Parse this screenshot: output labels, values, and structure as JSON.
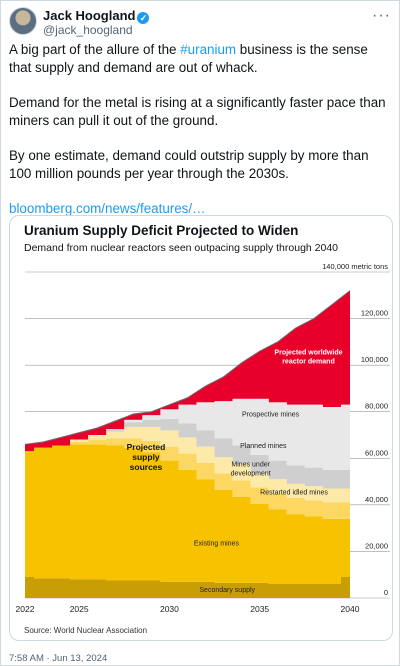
{
  "author": {
    "name": "Jack Hoogland",
    "handle": "@jack_hoogland",
    "verified_icon": "verified-badge-icon",
    "more_icon": "more-options-icon"
  },
  "tweet": {
    "p1_before": "A big part of the allure of the ",
    "p1_hashtag": "#uranium",
    "p1_after": " business is the sense that supply and demand are out of whack.",
    "p2": "Demand for the metal is rising at a significantly faster pace than miners can pull it out of the ground.",
    "p3": "By one estimate, demand could outstrip supply by more than 100 million pounds per year through the 2030s.",
    "link": "bloomberg.com/news/features/…",
    "timestamp": "7:58 AM · Jun 13, 2024"
  },
  "chart_data": {
    "type": "area",
    "title": "Uranium Supply Deficit Projected to Widen",
    "subtitle": "Demand from nuclear reactors seen outpacing supply through 2040",
    "y_unit": "140,000 metric tons",
    "ylim": [
      0,
      140000
    ],
    "y_ticks": [
      "0",
      "20,000",
      "40,000",
      "60,000",
      "80,000",
      "100,000",
      "120,000"
    ],
    "x_ticks": [
      "2022",
      "2025",
      "2030",
      "2035",
      "2040"
    ],
    "x": [
      2022,
      2023,
      2024,
      2025,
      2026,
      2027,
      2028,
      2029,
      2030,
      2031,
      2032,
      2033,
      2034,
      2035,
      2036,
      2037,
      2038,
      2039,
      2040
    ],
    "series": [
      {
        "name": "Secondary supply",
        "color": "#c99e05",
        "values": [
          9000,
          8500,
          8500,
          8000,
          8000,
          7500,
          7500,
          7500,
          7000,
          7000,
          7000,
          6500,
          6500,
          6500,
          6000,
          6000,
          6000,
          6000,
          9000
        ]
      },
      {
        "name": "Existing mines",
        "color": "#f7c200",
        "values": [
          54000,
          56000,
          57000,
          58000,
          58000,
          58000,
          57000,
          55000,
          52000,
          48000,
          44000,
          40000,
          37000,
          34000,
          32000,
          30000,
          29000,
          28000,
          25000
        ]
      },
      {
        "name": "Restarted idled mines",
        "color": "#fcd863",
        "values": [
          0,
          0,
          0,
          1000,
          2000,
          3000,
          4000,
          5000,
          6000,
          7000,
          7000,
          7000,
          7000,
          7000,
          7000,
          7000,
          7000,
          7000,
          7000
        ]
      },
      {
        "name": "Mines under development",
        "color": "#fde9a8",
        "values": [
          0,
          0,
          0,
          1000,
          2000,
          3000,
          5000,
          6000,
          7000,
          7000,
          7000,
          7000,
          7000,
          6000,
          6000,
          6000,
          6000,
          6000,
          6000
        ]
      },
      {
        "name": "Planned mines",
        "color": "#cfcfcf",
        "values": [
          0,
          0,
          0,
          0,
          0,
          1000,
          2000,
          3000,
          5000,
          6000,
          7000,
          8000,
          8000,
          8000,
          8000,
          8000,
          8000,
          8000,
          8000
        ]
      },
      {
        "name": "Prospective mines",
        "color": "#e8e8e8",
        "values": [
          0,
          0,
          0,
          0,
          0,
          0,
          1000,
          2000,
          4000,
          8000,
          12000,
          16000,
          20000,
          24000,
          25000,
          26000,
          27000,
          27000,
          28000
        ]
      },
      {
        "name": "Projected worldwide reactor demand",
        "color": "#e8002b",
        "values": [
          66000,
          67000,
          69000,
          71000,
          73000,
          76000,
          79000,
          80000,
          83000,
          86000,
          91000,
          95000,
          101000,
          106000,
          110000,
          116000,
          120000,
          126000,
          132000
        ]
      }
    ],
    "projected_supply_label": "Projected supply sources",
    "source": "Source: World Nuclear Association"
  }
}
